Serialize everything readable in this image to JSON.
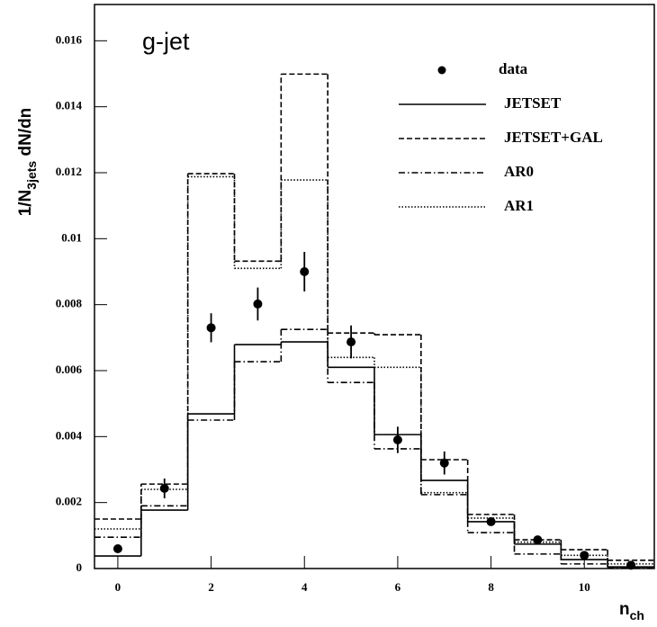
{
  "chart_data": {
    "type": "histogram",
    "annotation": "g-jet",
    "ylabel": {
      "main": "1/N",
      "sub": "3jets",
      "rest": " dN/dn"
    },
    "xlabel": {
      "main": "n",
      "sub": "ch"
    },
    "bins": [
      -0.5,
      0.5,
      1.5,
      2.5,
      3.5,
      4.5,
      5.5,
      6.5,
      7.5,
      8.5,
      9.5,
      10.5,
      11.5
    ],
    "xlim": [
      -0.5,
      11.5
    ],
    "ylim": [
      0,
      0.0171
    ],
    "xticks": [
      0,
      2,
      4,
      6,
      8,
      10
    ],
    "yticks": [
      0,
      0.002,
      0.004,
      0.006,
      0.008,
      0.01,
      0.012,
      0.014,
      0.016
    ],
    "legend": "upper right",
    "points": {
      "name": "data",
      "color": "#000000",
      "x": [
        0,
        1,
        2,
        3,
        4,
        5,
        6,
        7,
        8,
        9,
        10,
        11
      ],
      "values": [
        0.0006,
        0.00243,
        0.0073,
        0.00802,
        0.009,
        0.00687,
        0.0039,
        0.0032,
        0.00142,
        0.00087,
        0.0004,
        0.0001
      ],
      "errors": [
        0.0001,
        0.0003,
        0.00044,
        0.0005,
        0.0006,
        0.0005,
        0.0004,
        0.00035,
        0.0001,
        0.0001,
        0.0001,
        0.0001
      ]
    },
    "series": [
      {
        "name": "JETSET",
        "color": "#000000",
        "dash": "solid",
        "values": [
          0.00038,
          0.00177,
          0.00469,
          0.00679,
          0.00687,
          0.0061,
          0.00406,
          0.00267,
          0.00142,
          0.00074,
          0.00027,
          5e-05
        ]
      },
      {
        "name": "JETSET+GAL",
        "color": "#000000",
        "dash": "dashed",
        "values": [
          0.0015,
          0.00256,
          0.01197,
          0.00932,
          0.01499,
          0.00714,
          0.00709,
          0.0033,
          0.00164,
          0.00087,
          0.00057,
          0.00025
        ]
      },
      {
        "name": "AR0",
        "color": "#000000",
        "dash": "dashdot",
        "values": [
          0.00095,
          0.0019,
          0.0045,
          0.00627,
          0.00725,
          0.00564,
          0.00363,
          0.00224,
          0.00109,
          0.00044,
          0.00014,
          3e-05
        ]
      },
      {
        "name": "AR1",
        "color": "#000000",
        "dash": "dotted",
        "values": [
          0.0012,
          0.0024,
          0.01188,
          0.0091,
          0.01178,
          0.0064,
          0.0061,
          0.0023,
          0.00153,
          0.0008,
          0.0004,
          0.00014
        ]
      }
    ]
  }
}
